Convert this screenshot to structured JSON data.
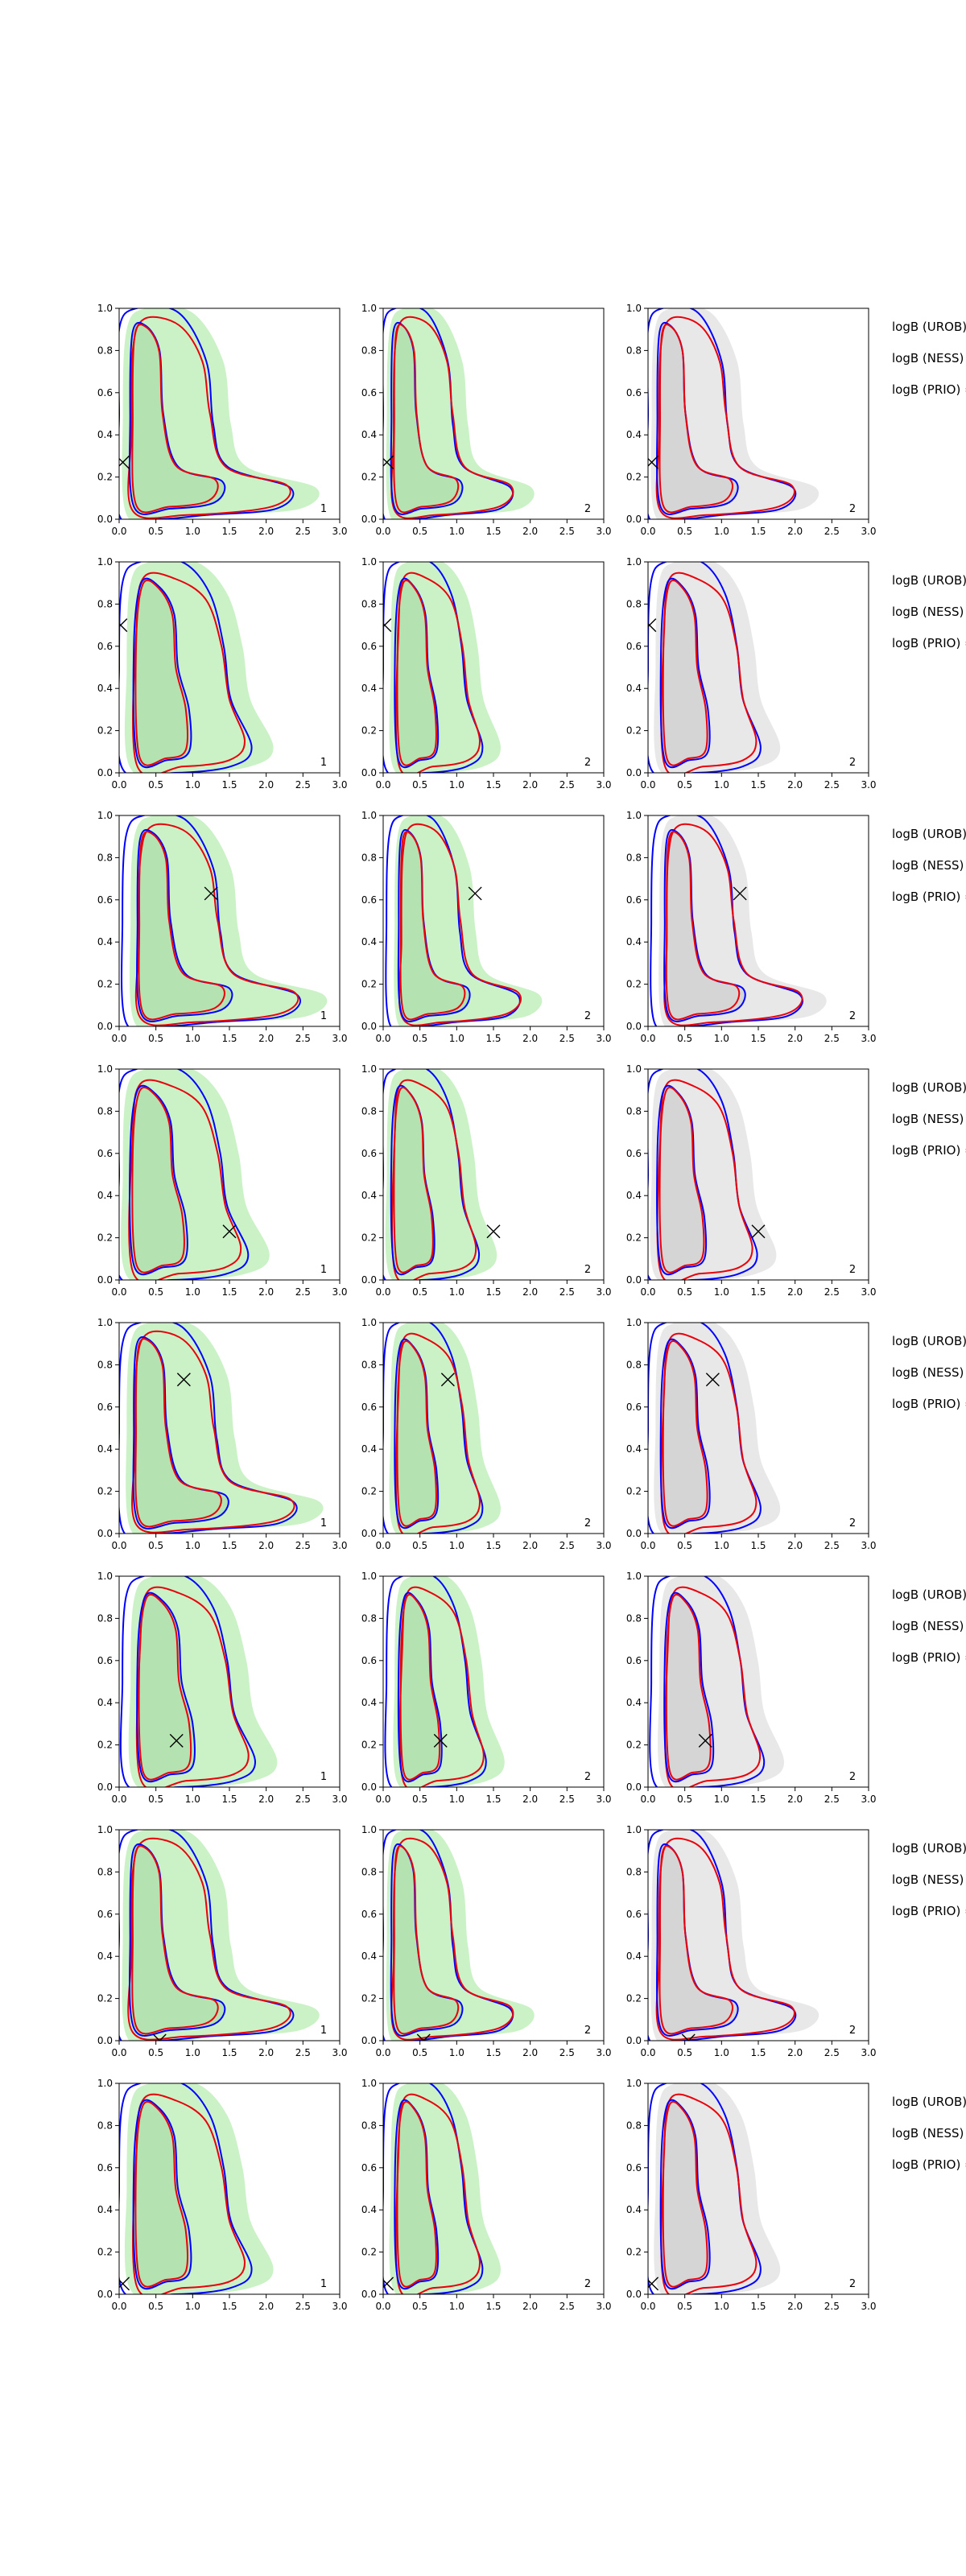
{
  "chart_data": {
    "type": "contour",
    "layout": "8 rows x 3 columns of 2D density contour panels",
    "x_ticks": [
      "0.0",
      "0.5",
      "1.0",
      "1.5",
      "2.0",
      "2.5",
      "3.0"
    ],
    "y_ticks": [
      "0.0",
      "0.2",
      "0.4",
      "0.6",
      "0.8",
      "1.0"
    ],
    "xlim": [
      0,
      3
    ],
    "ylim": [
      0,
      1
    ],
    "grid": false,
    "series_colors": {
      "red": "#e8000b",
      "blue": "#0000ff",
      "green_fill": "#b9ecb4",
      "grey_fill": "#dedede"
    },
    "legend_labels": [
      "logB (UROB) =",
      "logB (NESS) =",
      "logB (PRIO) ="
    ],
    "panel_labels": [
      "1",
      "2",
      "2"
    ],
    "markers": [
      {
        "row": 1,
        "x": 0.05,
        "y": 0.27
      },
      {
        "row": 2,
        "x": 0.02,
        "y": 0.7
      },
      {
        "row": 3,
        "x": 1.25,
        "y": 0.63
      },
      {
        "row": 4,
        "x": 1.5,
        "y": 0.23
      },
      {
        "row": 5,
        "x": 0.88,
        "y": 0.73
      },
      {
        "row": 6,
        "x": 0.78,
        "y": 0.22
      },
      {
        "row": 7,
        "x": 0.55,
        "y": 0.0
      },
      {
        "row": 8,
        "x": 0.05,
        "y": 0.05
      }
    ]
  }
}
